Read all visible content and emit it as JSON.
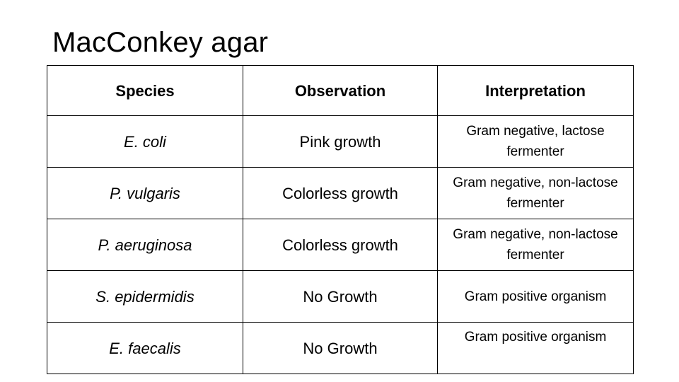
{
  "title": "MacConkey agar",
  "table": {
    "headers": [
      "Species",
      "Observation",
      "Interpretation"
    ],
    "rows": [
      {
        "species": "E. coli",
        "observation": "Pink growth",
        "interpretation": "Gram negative, lactose fermenter"
      },
      {
        "species": "P. vulgaris",
        "observation": "Colorless growth",
        "interpretation": "Gram negative, non-lactose fermenter"
      },
      {
        "species": "P. aeruginosa",
        "observation": "Colorless growth",
        "interpretation": "Gram negative, non-lactose fermenter"
      },
      {
        "species": "S. epidermidis",
        "observation": "No Growth",
        "interpretation": "Gram positive organism"
      },
      {
        "species": "E. faecalis",
        "observation": "No Growth",
        "interpretation": "Gram positive organism"
      }
    ]
  }
}
